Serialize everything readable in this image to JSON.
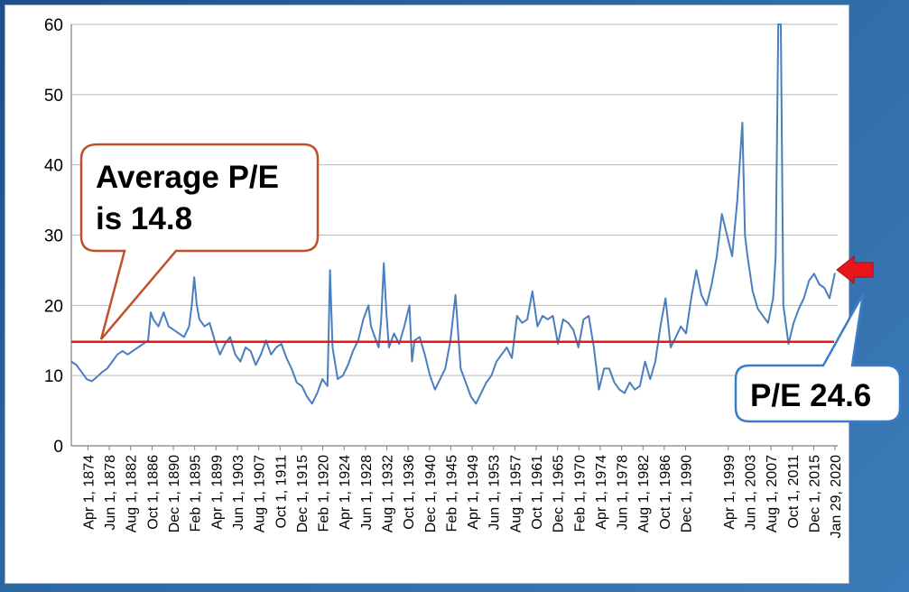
{
  "chart_data": {
    "type": "line",
    "title": "",
    "xlabel": "",
    "ylabel": "",
    "ylim": [
      0,
      60
    ],
    "y_ticks": [
      0,
      10,
      20,
      30,
      40,
      50,
      60
    ],
    "grid": "horizontal",
    "x_tick_labels": [
      "Apr 1, 1874",
      "Jun 1, 1878",
      "Aug 1, 1882",
      "Oct 1, 1886",
      "Dec 1, 1890",
      "Feb 1, 1895",
      "Apr 1, 1899",
      "Jun 1, 1903",
      "Aug 1, 1907",
      "Oct 1, 1911",
      "Dec 1, 1915",
      "Feb 1, 1920",
      "Apr 1, 1924",
      "Jun 1, 1928",
      "Aug 1, 1932",
      "Oct 1, 1936",
      "Dec 1, 1940",
      "Feb 1, 1945",
      "Apr 1, 1949",
      "Jun 1, 1953",
      "Aug 1, 1957",
      "Oct 1, 1961",
      "Dec 1, 1965",
      "Feb 1, 1970",
      "Apr 1, 1974",
      "Jun 1, 1978",
      "Aug 1, 1982",
      "Oct 1, 1986",
      "Dec 1, 1990",
      "Apr 1, 1999",
      "Jun 1, 2003",
      "Aug 1, 2007",
      "Oct 1, 2011",
      "Dec 1, 2015",
      "Jan 29, 2020"
    ],
    "x_tick_years": [
      1874.25,
      1878.42,
      1882.58,
      1886.75,
      1890.92,
      1895.08,
      1899.25,
      1903.42,
      1907.58,
      1911.75,
      1915.92,
      1920.08,
      1924.25,
      1928.42,
      1932.58,
      1936.75,
      1940.92,
      1945.08,
      1949.25,
      1953.42,
      1957.58,
      1961.75,
      1965.92,
      1970.08,
      1974.25,
      1978.42,
      1982.58,
      1986.75,
      1990.92,
      1999.25,
      2003.42,
      2007.58,
      2011.75,
      2015.92,
      2020.08
    ],
    "series": [
      {
        "color": "#4a7ebf",
        "x": [
          1871.0,
          1872.0,
          1873.0,
          1874.0,
          1875.0,
          1876.0,
          1877.0,
          1878.0,
          1879.0,
          1880.0,
          1881.0,
          1882.0,
          1883.0,
          1884.0,
          1885.0,
          1886.0,
          1886.5,
          1887.0,
          1888.0,
          1889.0,
          1890.0,
          1891.0,
          1892.0,
          1893.0,
          1894.0,
          1894.5,
          1895.0,
          1895.5,
          1896.0,
          1897.0,
          1898.0,
          1899.0,
          1900.0,
          1901.0,
          1902.0,
          1903.0,
          1904.0,
          1905.0,
          1906.0,
          1907.0,
          1908.0,
          1909.0,
          1910.0,
          1911.0,
          1912.0,
          1913.0,
          1914.0,
          1915.0,
          1916.0,
          1917.0,
          1918.0,
          1919.0,
          1920.0,
          1921.0,
          1921.5,
          1922.0,
          1923.0,
          1924.0,
          1925.0,
          1926.0,
          1927.0,
          1928.0,
          1929.0,
          1929.5,
          1930.0,
          1931.0,
          1931.5,
          1932.0,
          1932.5,
          1933.0,
          1934.0,
          1935.0,
          1936.0,
          1937.0,
          1937.5,
          1938.0,
          1939.0,
          1940.0,
          1941.0,
          1942.0,
          1943.0,
          1944.0,
          1945.0,
          1946.0,
          1947.0,
          1948.0,
          1949.0,
          1950.0,
          1951.0,
          1952.0,
          1953.0,
          1954.0,
          1955.0,
          1956.0,
          1957.0,
          1958.0,
          1959.0,
          1960.0,
          1961.0,
          1962.0,
          1963.0,
          1964.0,
          1965.0,
          1966.0,
          1967.0,
          1968.0,
          1969.0,
          1970.0,
          1971.0,
          1972.0,
          1973.0,
          1974.0,
          1975.0,
          1976.0,
          1977.0,
          1978.0,
          1979.0,
          1980.0,
          1981.0,
          1982.0,
          1983.0,
          1984.0,
          1985.0,
          1986.0,
          1987.0,
          1988.0,
          1989.0,
          1990.0,
          1991.0,
          1992.0,
          1993.0,
          1994.0,
          1995.0,
          1996.0,
          1997.0,
          1998.0,
          1999.0,
          2000.0,
          2001.0,
          2002.0,
          2002.5,
          2003.0,
          2004.0,
          2005.0,
          2006.0,
          2007.0,
          2008.0,
          2008.5,
          2009.0,
          2009.2,
          2009.5,
          2010.0,
          2011.0,
          2012.0,
          2013.0,
          2014.0,
          2015.0,
          2016.0,
          2017.0,
          2018.0,
          2019.0,
          2020.08
        ],
        "values": [
          12.0,
          11.5,
          10.5,
          9.5,
          9.2,
          9.8,
          10.5,
          11.0,
          12.0,
          13.0,
          13.5,
          13.0,
          13.5,
          14.0,
          14.5,
          15.0,
          19.0,
          18.0,
          17.0,
          19.0,
          17.0,
          16.5,
          16.0,
          15.5,
          17.0,
          20.0,
          24.0,
          20.0,
          18.0,
          17.0,
          17.5,
          15.0,
          13.0,
          14.5,
          15.5,
          13.0,
          12.0,
          14.0,
          13.5,
          11.5,
          13.0,
          15.0,
          13.0,
          14.0,
          14.5,
          12.5,
          11.0,
          9.0,
          8.5,
          7.0,
          6.0,
          7.5,
          9.5,
          8.5,
          25.0,
          14.0,
          9.5,
          10.0,
          11.5,
          13.5,
          15.0,
          18.0,
          20.0,
          17.0,
          16.0,
          14.0,
          18.0,
          26.0,
          19.0,
          14.0,
          16.0,
          14.5,
          17.0,
          20.0,
          12.0,
          15.0,
          15.5,
          13.0,
          10.0,
          8.0,
          9.5,
          11.0,
          15.0,
          21.5,
          11.0,
          9.0,
          7.0,
          6.0,
          7.5,
          9.0,
          10.0,
          12.0,
          13.0,
          14.0,
          12.5,
          18.5,
          17.5,
          18.0,
          22.0,
          17.0,
          18.5,
          18.0,
          18.5,
          14.5,
          18.0,
          17.5,
          16.5,
          14.0,
          18.0,
          18.5,
          14.0,
          8.0,
          11.0,
          11.0,
          9.0,
          8.0,
          7.5,
          9.0,
          8.0,
          8.5,
          12.0,
          9.5,
          12.0,
          17.0,
          21.0,
          14.0,
          15.5,
          17.0,
          16.0,
          21.0,
          25.0,
          21.5,
          20.0,
          23.0,
          27.0,
          33.0,
          30.0,
          27.0,
          35.0,
          46.0,
          30.0,
          27.0,
          22.0,
          19.5,
          18.5,
          17.5,
          21.0,
          27.0,
          60.0,
          60.0,
          60.0,
          20.0,
          14.5,
          17.5,
          19.5,
          21.0,
          23.5,
          24.5,
          23.0,
          22.5,
          21.0,
          24.6
        ]
      }
    ],
    "reference_line": {
      "value": 14.8,
      "color": "#e8161a"
    },
    "annotations": {
      "average": {
        "line1": "Average P/E",
        "line2": "is 14.8"
      },
      "current": {
        "text": "P/E 24.6"
      }
    }
  }
}
